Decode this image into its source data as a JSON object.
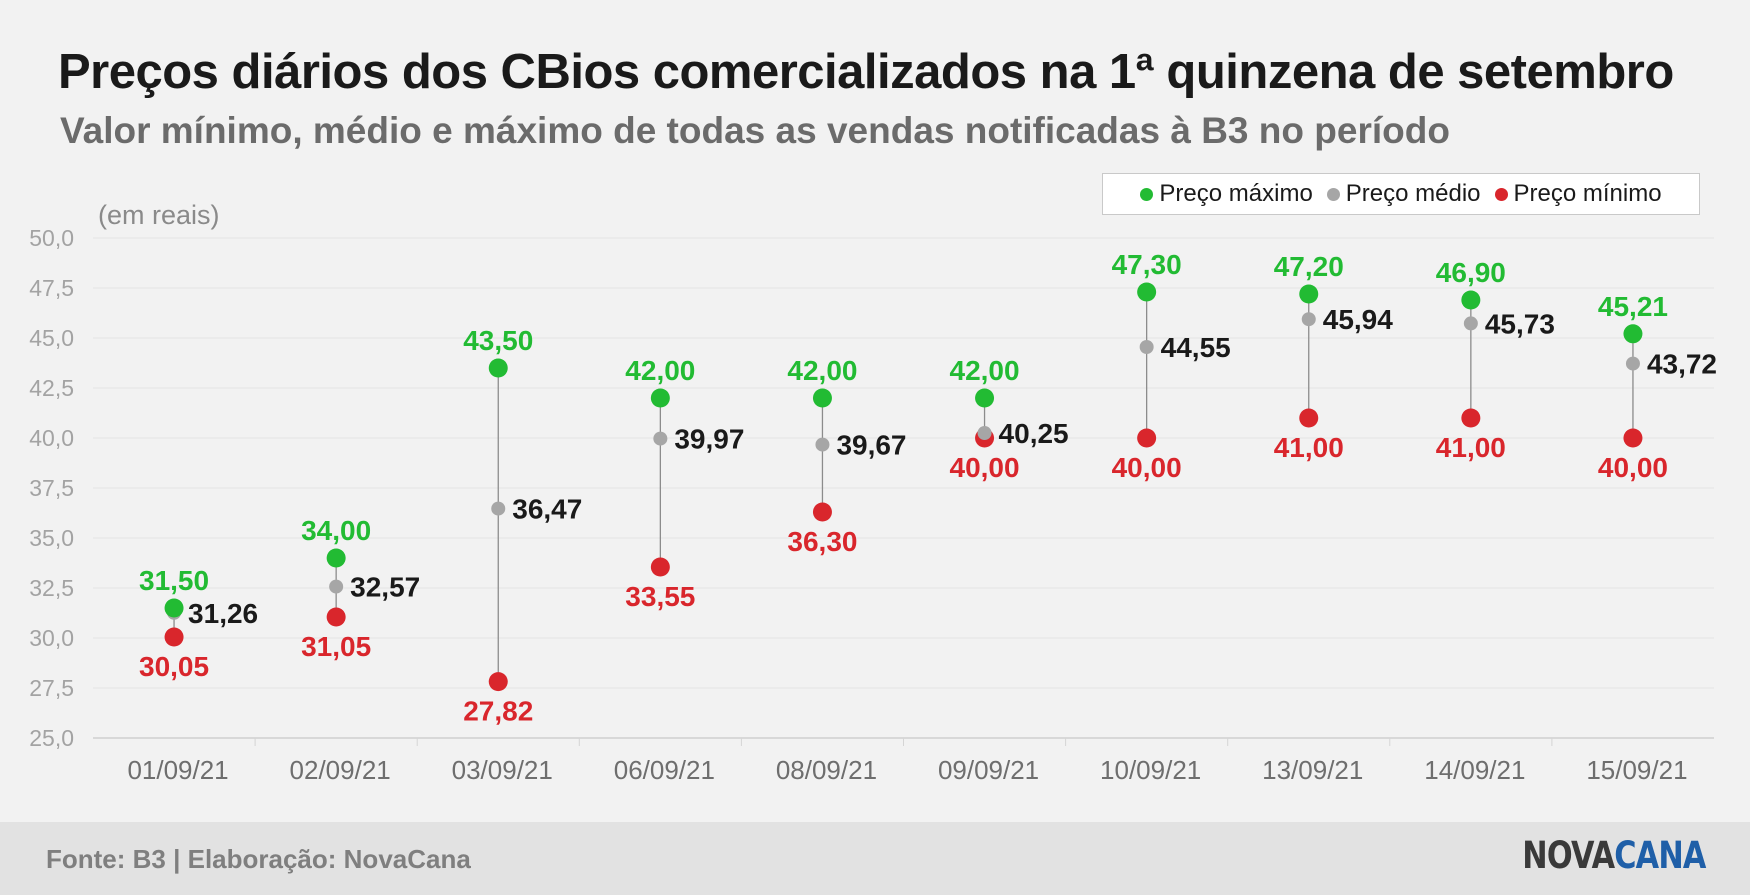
{
  "header": {
    "title": "Preços diários dos CBios comercializados na 1ª quinzena de setembro",
    "subtitle": "Valor mínimo, médio e máximo de todas as vendas notificadas à B3 no período"
  },
  "legend": {
    "max_label": "Preço máximo",
    "avg_label": "Preço médio",
    "min_label": "Preço mínimo"
  },
  "footer": {
    "source": "Fonte: B3 | Elaboração: NovaCana",
    "logo_part1": "NOVA",
    "logo_part2": "CANA"
  },
  "chart_data": {
    "type": "scatter",
    "unit_label": "(em reais)",
    "categories": [
      "01/09/21",
      "02/09/21",
      "03/09/21",
      "06/09/21",
      "08/09/21",
      "09/09/21",
      "10/09/21",
      "13/09/21",
      "14/09/21",
      "15/09/21"
    ],
    "series": [
      {
        "name": "Preço máximo",
        "color": "#22bb33",
        "values": [
          31.5,
          34.0,
          43.5,
          42.0,
          42.0,
          42.0,
          47.3,
          47.2,
          46.9,
          45.21
        ],
        "labels": [
          "31,50",
          "34,00",
          "43,50",
          "42,00",
          "42,00",
          "42,00",
          "47,30",
          "47,20",
          "46,90",
          "45,21"
        ]
      },
      {
        "name": "Preço médio",
        "color": "#a6a6a6",
        "values": [
          31.26,
          32.57,
          36.47,
          39.97,
          39.67,
          40.25,
          44.55,
          45.94,
          45.73,
          43.72
        ],
        "labels": [
          "31,26",
          "32,57",
          "36,47",
          "39,97",
          "39,67",
          "40,25",
          "44,55",
          "45,94",
          "45,73",
          "43,72"
        ]
      },
      {
        "name": "Preço mínimo",
        "color": "#d9262c",
        "values": [
          30.05,
          31.05,
          27.82,
          33.55,
          36.3,
          40.0,
          40.0,
          41.0,
          41.0,
          40.0
        ],
        "labels": [
          "30,05",
          "31,05",
          "27,82",
          "33,55",
          "36,30",
          "40,00",
          "40,00",
          "41,00",
          "41,00",
          "40,00"
        ]
      }
    ],
    "ylim": [
      25,
      50
    ],
    "yticks": [
      "25,0",
      "27,5",
      "30,0",
      "32,5",
      "35,0",
      "37,5",
      "40,0",
      "42,5",
      "45,0",
      "47,5",
      "50,0"
    ],
    "grid": true,
    "legend_position": "top-right",
    "label_color_avg": "#1a1a1a"
  }
}
